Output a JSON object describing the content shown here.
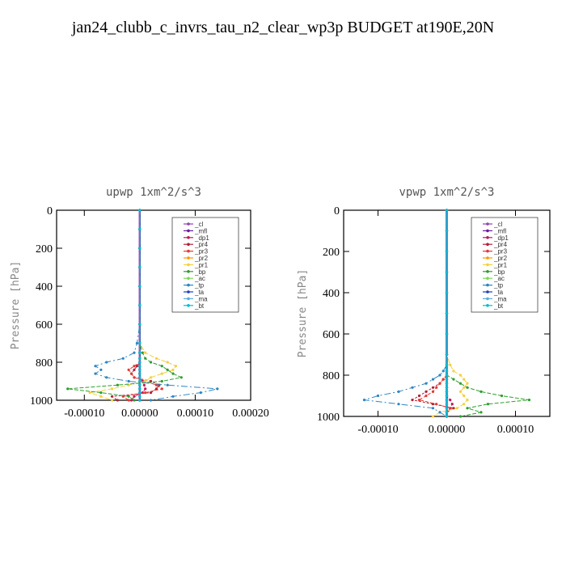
{
  "figure": {
    "title": "jan24_clubb_c_invrs_tau_n2_clear_wp3p  BUDGET at190E,20N"
  },
  "colors": {
    "_cl": "#8e44ad",
    "_mfl": "#6a1b9a",
    "_dp1": "#c2185b",
    "_pr4": "#b22238",
    "_pr3": "#e53935",
    "_pr2": "#ff9800",
    "_pr1": "#f4d03f",
    "_bp": "#2e9e2e",
    "_ac": "#7ed957",
    "_tp": "#2e86c1",
    "_ta": "#1f3fbf",
    "_ma": "#5dade2",
    "_bt": "#00bcd4"
  },
  "chart_data": [
    {
      "type": "line",
      "title": "upwp   1xm^2/s^3",
      "ylabel": "Pressure [hPa]",
      "ylim": [
        1000,
        0
      ],
      "xlim": [
        -0.00015,
        0.0002
      ],
      "xticks": [
        "-0.00010",
        "0.00000",
        "0.00010",
        "0.00020"
      ],
      "xtick_values": [
        -0.0001,
        0,
        0.0001,
        0.0002
      ],
      "yticks": [
        "0",
        "200",
        "400",
        "600",
        "800",
        "1000"
      ],
      "ytick_values": [
        0,
        200,
        400,
        600,
        800,
        1000
      ],
      "legend_position": "top-right",
      "pressure": [
        0,
        100,
        200,
        300,
        400,
        500,
        600,
        700,
        750,
        780,
        800,
        820,
        840,
        860,
        880,
        900,
        920,
        940,
        960,
        980,
        1000
      ],
      "series": [
        {
          "name": "_cl",
          "values": [
            0,
            0,
            0,
            0,
            0,
            0,
            0,
            0,
            0,
            0,
            0,
            0,
            0,
            0,
            0,
            0,
            0,
            0,
            0,
            0,
            0
          ]
        },
        {
          "name": "_mfl",
          "values": [
            0,
            0,
            0,
            0,
            0,
            0,
            0,
            0,
            0,
            0,
            0,
            0,
            0,
            0,
            0,
            0,
            0,
            0,
            0,
            0,
            0
          ]
        },
        {
          "name": "_dp1",
          "values": [
            0,
            0,
            0,
            0,
            0,
            0,
            0,
            0,
            0,
            0,
            0,
            0,
            0,
            0,
            0,
            5e-06,
            8e-06,
            1e-05,
            5e-06,
            -1e-05,
            -1.5e-05
          ]
        },
        {
          "name": "_pr4",
          "values": [
            0,
            0,
            0,
            0,
            0,
            0,
            0,
            0,
            0,
            0,
            0,
            -5e-06,
            -1e-05,
            -1.5e-05,
            -1e-05,
            2e-05,
            3.5e-05,
            3e-05,
            2e-05,
            -5e-05,
            -4e-05
          ]
        },
        {
          "name": "_pr3",
          "values": [
            0,
            0,
            0,
            0,
            0,
            0,
            0,
            0,
            0,
            0,
            0,
            -1e-05,
            -2e-05,
            -1.5e-05,
            -1e-05,
            1e-05,
            3e-05,
            4e-05,
            1e-05,
            -3e-05,
            -2e-05
          ]
        },
        {
          "name": "_pr2",
          "values": [
            0,
            0,
            0,
            0,
            0,
            0,
            0,
            0,
            0,
            0,
            0,
            0,
            0,
            0,
            0,
            0,
            0,
            0,
            0,
            0,
            0
          ]
        },
        {
          "name": "_pr1",
          "values": [
            0,
            0,
            0,
            0,
            0,
            0,
            0,
            0,
            1e-05,
            3e-05,
            5e-05,
            6.5e-05,
            6e-05,
            4e-05,
            2e-05,
            1e-05,
            -2e-05,
            -5e-05,
            -9e-05,
            -7e-05,
            -5e-05
          ]
        },
        {
          "name": "_bp",
          "values": [
            0,
            0,
            0,
            0,
            0,
            0,
            0,
            0,
            5e-06,
            1e-05,
            2e-05,
            4e-05,
            5e-05,
            6e-05,
            7.5e-05,
            4e-05,
            -4e-05,
            -0.00013,
            -7e-05,
            -2e-05,
            -1e-05
          ]
        },
        {
          "name": "_ac",
          "values": [
            0,
            0,
            0,
            0,
            0,
            0,
            0,
            0,
            0,
            0,
            0,
            0,
            0,
            0,
            0,
            0,
            0,
            0,
            0,
            0,
            0
          ]
        },
        {
          "name": "_tp",
          "values": [
            0,
            0,
            0,
            0,
            0,
            0,
            0,
            -5e-06,
            -1e-05,
            -3e-05,
            -6e-05,
            -8e-05,
            -7e-05,
            -8e-05,
            -6e-05,
            -2e-05,
            5e-05,
            0.00014,
            0.00011,
            6e-05,
            2e-05
          ]
        },
        {
          "name": "_ta",
          "values": [
            0,
            0,
            0,
            0,
            0,
            0,
            0,
            0,
            0,
            0,
            0,
            0,
            0,
            0,
            0,
            0,
            0,
            0,
            0,
            0,
            0
          ]
        },
        {
          "name": "_ma",
          "values": [
            0,
            0,
            0,
            0,
            0,
            0,
            0,
            0,
            0,
            0,
            0,
            0,
            0,
            0,
            0,
            0,
            0,
            0,
            0,
            0,
            0
          ]
        },
        {
          "name": "_bt",
          "values": [
            0,
            0,
            0,
            0,
            0,
            0,
            0,
            0,
            0,
            0,
            0,
            0,
            0,
            0,
            0,
            0,
            0,
            0,
            0,
            0,
            0
          ]
        }
      ]
    },
    {
      "type": "line",
      "title": "vpwp   1xm^2/s^3",
      "ylabel": "Pressure [hPa]",
      "ylim": [
        1000,
        0
      ],
      "xlim": [
        -0.00015,
        0.00015
      ],
      "xticks": [
        "-0.00010",
        "0.00000",
        "0.00010"
      ],
      "xtick_values": [
        -0.0001,
        0,
        0.0001
      ],
      "yticks": [
        "0",
        "200",
        "400",
        "600",
        "800",
        "1000"
      ],
      "ytick_values": [
        0,
        200,
        400,
        600,
        800,
        1000
      ],
      "legend_position": "top-right",
      "pressure": [
        0,
        100,
        200,
        300,
        400,
        500,
        600,
        700,
        750,
        780,
        800,
        820,
        840,
        860,
        880,
        900,
        920,
        940,
        960,
        980,
        1000
      ],
      "series": [
        {
          "name": "_cl",
          "values": [
            0,
            0,
            0,
            0,
            0,
            0,
            0,
            0,
            0,
            0,
            0,
            0,
            0,
            0,
            0,
            0,
            0,
            0,
            0,
            0,
            0
          ]
        },
        {
          "name": "_mfl",
          "values": [
            0,
            0,
            0,
            0,
            0,
            0,
            0,
            0,
            0,
            0,
            0,
            0,
            0,
            0,
            0,
            0,
            0,
            0,
            0,
            0,
            0
          ]
        },
        {
          "name": "_dp1",
          "values": [
            0,
            0,
            0,
            0,
            0,
            0,
            0,
            0,
            0,
            0,
            0,
            0,
            0,
            0,
            0,
            0,
            5e-06,
            8e-06,
            5e-06,
            0,
            0
          ]
        },
        {
          "name": "_pr4",
          "values": [
            0,
            0,
            0,
            0,
            0,
            0,
            0,
            0,
            0,
            0,
            0,
            -5e-06,
            -1e-05,
            -2e-05,
            -3e-05,
            -4e-05,
            -5e-05,
            -2e-05,
            1e-05,
            0,
            0
          ]
        },
        {
          "name": "_pr3",
          "values": [
            0,
            0,
            0,
            0,
            0,
            0,
            0,
            0,
            0,
            0,
            0,
            -5e-06,
            -1e-05,
            -1.5e-05,
            -2e-05,
            -3e-05,
            -4e-05,
            -1.5e-05,
            5e-06,
            0,
            0
          ]
        },
        {
          "name": "_pr2",
          "values": [
            0,
            0,
            0,
            0,
            0,
            0,
            0,
            0,
            0,
            0,
            0,
            0,
            0,
            0,
            0,
            0,
            0,
            0,
            0,
            0,
            0
          ]
        },
        {
          "name": "_pr1",
          "values": [
            0,
            0,
            0,
            0,
            0,
            0,
            0,
            0,
            5e-06,
            1e-05,
            2e-05,
            2.5e-05,
            3e-05,
            2.5e-05,
            2e-05,
            2.5e-05,
            3e-05,
            2.5e-05,
            1.5e-05,
            -1e-05,
            -2e-05
          ]
        },
        {
          "name": "_bp",
          "values": [
            0,
            0,
            0,
            0,
            0,
            0,
            0,
            0,
            0,
            0,
            0,
            1e-05,
            2e-05,
            3e-05,
            5e-05,
            8e-05,
            0.00012,
            6e-05,
            3e-05,
            5e-05,
            2e-05
          ]
        },
        {
          "name": "_ac",
          "values": [
            0,
            0,
            0,
            0,
            0,
            0,
            0,
            0,
            0,
            0,
            0,
            0,
            0,
            0,
            0,
            0,
            0,
            0,
            0,
            0,
            0
          ]
        },
        {
          "name": "_tp",
          "values": [
            0,
            0,
            0,
            0,
            0,
            0,
            0,
            0,
            0,
            -5e-06,
            -1e-05,
            -2e-05,
            -3e-05,
            -5e-05,
            -7e-05,
            -0.0001,
            -0.00012,
            -7e-05,
            -2e-05,
            -1e-05,
            0
          ]
        },
        {
          "name": "_ta",
          "values": [
            0,
            0,
            0,
            0,
            0,
            0,
            0,
            0,
            0,
            0,
            0,
            0,
            0,
            0,
            0,
            0,
            0,
            0,
            0,
            0,
            0
          ]
        },
        {
          "name": "_ma",
          "values": [
            0,
            0,
            0,
            0,
            0,
            0,
            0,
            0,
            0,
            0,
            0,
            0,
            0,
            0,
            0,
            0,
            0,
            0,
            0,
            0,
            0
          ]
        },
        {
          "name": "_bt",
          "values": [
            0,
            0,
            0,
            0,
            0,
            0,
            0,
            0,
            0,
            0,
            0,
            0,
            0,
            0,
            0,
            0,
            0,
            0,
            0,
            0,
            0
          ]
        }
      ]
    }
  ]
}
